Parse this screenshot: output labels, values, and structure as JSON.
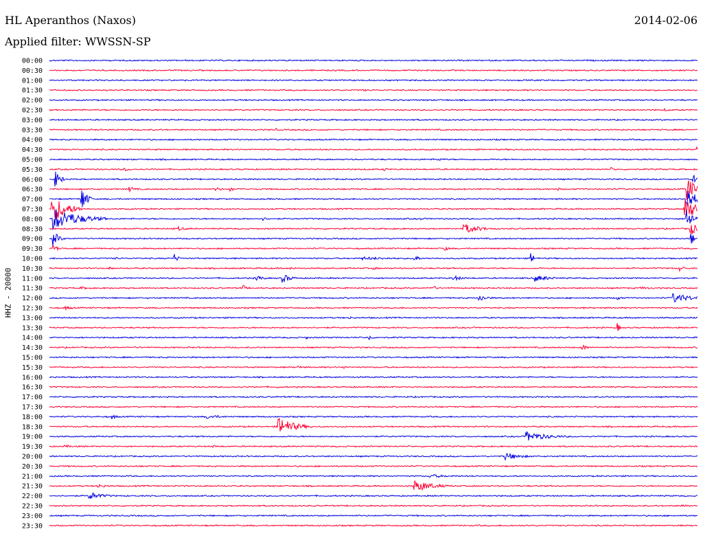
{
  "header": {
    "station": "HL Aperanthos (Naxos)",
    "date": "2014-02-06",
    "filter_label": "Applied filter:",
    "filter_value": "WWSSN-SP"
  },
  "channel_label": "HHZ - 20000",
  "colors": {
    "trace_a": "#0000e0",
    "trace_b": "#ff0033",
    "text": "#000000",
    "background": "#ffffff"
  },
  "chart_data": {
    "type": "line",
    "title": "HL Aperanthos (Naxos)",
    "ylabel": "HHZ - 20000",
    "row_minutes": 30,
    "row_labels": [
      "00:00",
      "00:30",
      "01:00",
      "01:30",
      "02:00",
      "02:30",
      "03:00",
      "03:30",
      "04:00",
      "04:30",
      "05:00",
      "05:30",
      "06:00",
      "06:30",
      "07:00",
      "07:30",
      "08:00",
      "08:30",
      "09:00",
      "09:30",
      "10:00",
      "10:30",
      "11:00",
      "11:30",
      "12:00",
      "12:30",
      "13:00",
      "13:30",
      "14:00",
      "14:30",
      "15:00",
      "15:30",
      "16:00",
      "16:30",
      "17:00",
      "17:30",
      "18:00",
      "18:30",
      "19:00",
      "19:30",
      "20:00",
      "20:30",
      "21:00",
      "21:30",
      "22:00",
      "22:30",
      "23:00",
      "23:30"
    ],
    "row_colors": [
      "trace_a",
      "trace_b",
      "trace_a",
      "trace_b",
      "trace_a",
      "trace_b",
      "trace_a",
      "trace_b",
      "trace_a",
      "trace_b",
      "trace_a",
      "trace_b",
      "trace_a",
      "trace_b",
      "trace_a",
      "trace_b",
      "trace_a",
      "trace_b",
      "trace_a",
      "trace_b",
      "trace_a",
      "trace_b",
      "trace_a",
      "trace_b",
      "trace_a",
      "trace_b",
      "trace_a",
      "trace_b",
      "trace_a",
      "trace_b",
      "trace_a",
      "trace_b",
      "trace_a",
      "trace_b",
      "trace_a",
      "trace_b",
      "trace_a",
      "trace_b",
      "trace_a",
      "trace_b",
      "trace_a",
      "trace_b",
      "trace_a",
      "trace_b",
      "trace_a",
      "trace_b",
      "trace_a",
      "trace_b"
    ],
    "events": [
      {
        "row": 3,
        "minute": 14.5,
        "amplitude": 1.5,
        "duration": 1.0
      },
      {
        "row": 5,
        "minute": 28.5,
        "amplitude": 2,
        "duration": 0.8
      },
      {
        "row": 7,
        "minute": 10.5,
        "amplitude": 2,
        "duration": 0.4
      },
      {
        "row": 9,
        "minute": 30,
        "amplitude": 8,
        "duration": 0.3
      },
      {
        "row": 10,
        "minute": 18.0,
        "amplitude": 2,
        "duration": 0.8
      },
      {
        "row": 11,
        "minute": 3.5,
        "amplitude": 2.5,
        "duration": 0.8
      },
      {
        "row": 11,
        "minute": 15.5,
        "amplitude": 2.5,
        "duration": 0.6
      },
      {
        "row": 11,
        "minute": 26.0,
        "amplitude": 3,
        "duration": 0.5
      },
      {
        "row": 12,
        "minute": 0.3,
        "amplitude": 12,
        "duration": 0.5
      },
      {
        "row": 12,
        "minute": 29.8,
        "amplitude": 12,
        "duration": 0.3
      },
      {
        "row": 13,
        "minute": 3.7,
        "amplitude": 4,
        "duration": 0.7
      },
      {
        "row": 13,
        "minute": 7.7,
        "amplitude": 3,
        "duration": 0.8
      },
      {
        "row": 13,
        "minute": 8.4,
        "amplitude": 5,
        "duration": 0.2
      },
      {
        "row": 13,
        "minute": 23.5,
        "amplitude": 2.5,
        "duration": 0.5
      },
      {
        "row": 13,
        "minute": 29.5,
        "amplitude": 20,
        "duration": 0.8
      },
      {
        "row": 14,
        "minute": 1.5,
        "amplitude": 20,
        "duration": 0.5
      },
      {
        "row": 14,
        "minute": 29.5,
        "amplitude": 20,
        "duration": 0.8
      },
      {
        "row": 15,
        "minute": 0.1,
        "amplitude": 22,
        "duration": 1.4
      },
      {
        "row": 15,
        "minute": 29.4,
        "amplitude": 22,
        "duration": 0.9
      },
      {
        "row": 16,
        "minute": 0.2,
        "amplitude": 16,
        "duration": 2.5
      },
      {
        "row": 16,
        "minute": 9.9,
        "amplitude": 2.5,
        "duration": 0.6
      },
      {
        "row": 16,
        "minute": 17.2,
        "amplitude": 2,
        "duration": 0.6
      },
      {
        "row": 16,
        "minute": 29.5,
        "amplitude": 16,
        "duration": 0.7
      },
      {
        "row": 17,
        "minute": 6.0,
        "amplitude": 3,
        "duration": 0.8
      },
      {
        "row": 17,
        "minute": 19.2,
        "amplitude": 8,
        "duration": 1.5
      },
      {
        "row": 17,
        "minute": 29.7,
        "amplitude": 10,
        "duration": 0.6
      },
      {
        "row": 18,
        "minute": 0.2,
        "amplitude": 12,
        "duration": 0.5
      },
      {
        "row": 18,
        "minute": 29.7,
        "amplitude": 10,
        "duration": 0.4
      },
      {
        "row": 19,
        "minute": 0.2,
        "amplitude": 6,
        "duration": 0.4
      },
      {
        "row": 19,
        "minute": 18.3,
        "amplitude": 3,
        "duration": 0.6
      },
      {
        "row": 20,
        "minute": 3.1,
        "amplitude": 2,
        "duration": 0.6
      },
      {
        "row": 20,
        "minute": 5.8,
        "amplitude": 6,
        "duration": 0.4
      },
      {
        "row": 20,
        "minute": 14.5,
        "amplitude": 2.5,
        "duration": 3.5
      },
      {
        "row": 20,
        "minute": 16.9,
        "amplitude": 9,
        "duration": 0.3
      },
      {
        "row": 20,
        "minute": 22.3,
        "amplitude": 8,
        "duration": 0.4
      },
      {
        "row": 21,
        "minute": 2.8,
        "amplitude": 2,
        "duration": 0.6
      },
      {
        "row": 21,
        "minute": 11.2,
        "amplitude": 2,
        "duration": 0.6
      },
      {
        "row": 21,
        "minute": 15.0,
        "amplitude": 2,
        "duration": 0.8
      },
      {
        "row": 21,
        "minute": 29.2,
        "amplitude": 4,
        "duration": 0.5
      },
      {
        "row": 22,
        "minute": 9.6,
        "amplitude": 5,
        "duration": 0.6
      },
      {
        "row": 22,
        "minute": 10.8,
        "amplitude": 7,
        "duration": 0.8
      },
      {
        "row": 22,
        "minute": 18.7,
        "amplitude": 4,
        "duration": 1.0
      },
      {
        "row": 22,
        "minute": 22.5,
        "amplitude": 5,
        "duration": 1.5
      },
      {
        "row": 23,
        "minute": 1.5,
        "amplitude": 2,
        "duration": 1.3
      },
      {
        "row": 23,
        "minute": 9.0,
        "amplitude": 4,
        "duration": 0.3
      },
      {
        "row": 23,
        "minute": 17.7,
        "amplitude": 4,
        "duration": 0.6
      },
      {
        "row": 23,
        "minute": 27.4,
        "amplitude": 2,
        "duration": 1.8
      },
      {
        "row": 24,
        "minute": 19.9,
        "amplitude": 5,
        "duration": 0.9
      },
      {
        "row": 24,
        "minute": 26.3,
        "amplitude": 4,
        "duration": 0.4
      },
      {
        "row": 24,
        "minute": 28.9,
        "amplitude": 7,
        "duration": 2.0
      },
      {
        "row": 25,
        "minute": 0.7,
        "amplitude": 3,
        "duration": 1.0
      },
      {
        "row": 26,
        "minute": 13.9,
        "amplitude": 2,
        "duration": 0.6
      },
      {
        "row": 27,
        "minute": 26.3,
        "amplitude": 8,
        "duration": 0.2
      },
      {
        "row": 28,
        "minute": 11.9,
        "amplitude": 2,
        "duration": 0.6
      },
      {
        "row": 28,
        "minute": 14.8,
        "amplitude": 5,
        "duration": 0.3
      },
      {
        "row": 29,
        "minute": 24.7,
        "amplitude": 4,
        "duration": 0.6
      },
      {
        "row": 31,
        "minute": 11.5,
        "amplitude": 3,
        "duration": 0.4
      },
      {
        "row": 31,
        "minute": 13.6,
        "amplitude": 3,
        "duration": 0.4
      },
      {
        "row": 33,
        "minute": 10.6,
        "amplitude": 2,
        "duration": 0.4
      },
      {
        "row": 36,
        "minute": 2.9,
        "amplitude": 4,
        "duration": 0.5
      },
      {
        "row": 36,
        "minute": 7.3,
        "amplitude": 3,
        "duration": 1.8
      },
      {
        "row": 37,
        "minute": 10.6,
        "amplitude": 14,
        "duration": 1.6
      },
      {
        "row": 38,
        "minute": 22.1,
        "amplitude": 7,
        "duration": 2.3
      },
      {
        "row": 39,
        "minute": 0.7,
        "amplitude": 2,
        "duration": 1.5
      },
      {
        "row": 39,
        "minute": 7.6,
        "amplitude": 2,
        "duration": 0.8
      },
      {
        "row": 40,
        "minute": 21.1,
        "amplitude": 6,
        "duration": 1.5
      },
      {
        "row": 42,
        "minute": 17.6,
        "amplitude": 3,
        "duration": 1.8
      },
      {
        "row": 43,
        "minute": 2.2,
        "amplitude": 3,
        "duration": 1.2
      },
      {
        "row": 43,
        "minute": 16.9,
        "amplitude": 9,
        "duration": 1.8
      },
      {
        "row": 44,
        "minute": 1.8,
        "amplitude": 6,
        "duration": 1.5
      },
      {
        "row": 45,
        "minute": 29.3,
        "amplitude": 2,
        "duration": 1.0
      }
    ]
  }
}
